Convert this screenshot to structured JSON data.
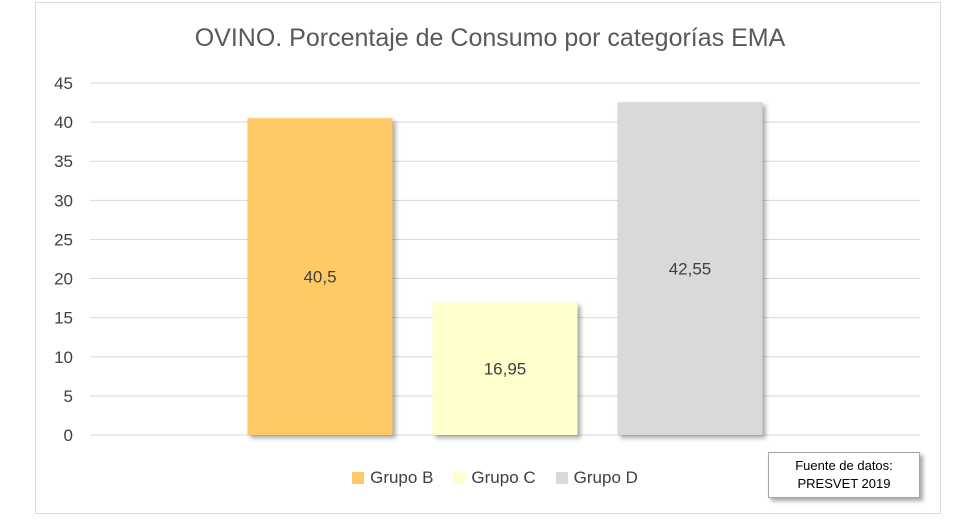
{
  "chart_data": {
    "type": "bar",
    "title": "OVINO. Porcentaje de Consumo por categorías EMA",
    "categories": [
      "Grupo B",
      "Grupo C",
      "Grupo D"
    ],
    "values": [
      40.5,
      16.95,
      42.55
    ],
    "data_labels": [
      "40,5",
      "16,95",
      "42,55"
    ],
    "colors": [
      "#ffc966",
      "#ffffcc",
      "#d9d9d9"
    ],
    "ylim": [
      0,
      45
    ],
    "yticks": [
      0,
      5,
      10,
      15,
      20,
      25,
      30,
      35,
      40,
      45
    ],
    "grid": true,
    "legend_position": "bottom",
    "legend": [
      "Grupo B",
      "Grupo C",
      "Grupo D"
    ]
  },
  "source_note": {
    "line1": "Fuente de datos:",
    "line2": "PRESVET 2019"
  }
}
